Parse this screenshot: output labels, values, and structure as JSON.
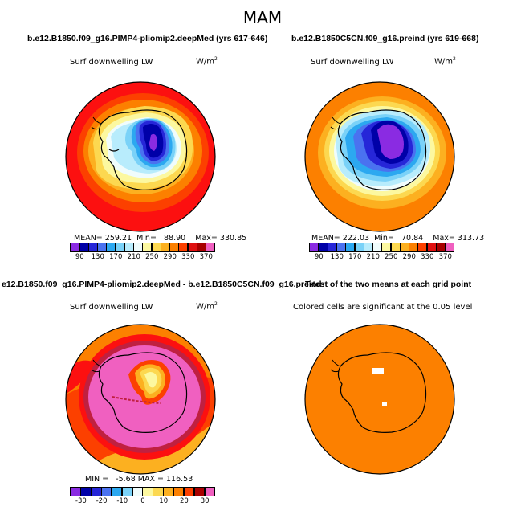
{
  "title": "MAM",
  "panels": [
    {
      "id": "p1",
      "title": "b.e12.B1850.f09_g16.PIMP4-pliomip2.deepMed (yrs 617-646)",
      "variable": "Surf downwelling LW",
      "units": "W/m",
      "units_exp": "2",
      "stats": {
        "mean_label": "MEAN=",
        "mean": "259.21",
        "min_label": "Min=",
        "min": "88.90",
        "max_label": "Max=",
        "max": "330.85"
      },
      "colorbar": {
        "ticks": [
          "90",
          "130",
          "170",
          "210",
          "250",
          "290",
          "330",
          "370"
        ],
        "colors": [
          "#8a2be2",
          "#0000a8",
          "#2626d8",
          "#4a72f0",
          "#2ca8f0",
          "#7ad2f8",
          "#b8ecfc",
          "#f0fcfc",
          "#fcf8a0",
          "#fcd850",
          "#fcb020",
          "#fc8000",
          "#fc4000",
          "#e01010",
          "#a80000",
          "#f060c0"
        ]
      }
    },
    {
      "id": "p2",
      "title": "b.e12.B1850C5CN.f09_g16.preind (yrs 619-668)",
      "variable": "Surf downwelling LW",
      "units": "W/m",
      "units_exp": "2",
      "stats": {
        "mean_label": "MEAN=",
        "mean": "222.03",
        "min_label": "Min=",
        "min": "70.84",
        "max_label": "Max=",
        "max": "313.73"
      },
      "colorbar": {
        "ticks": [
          "90",
          "130",
          "170",
          "210",
          "250",
          "290",
          "330",
          "370"
        ],
        "colors": [
          "#8a2be2",
          "#0000a8",
          "#2626d8",
          "#4a72f0",
          "#2ca8f0",
          "#7ad2f8",
          "#b8ecfc",
          "#f0fcfc",
          "#fcf8a0",
          "#fcd850",
          "#fcb020",
          "#fc8000",
          "#fc4000",
          "#e01010",
          "#a80000",
          "#f060c0"
        ]
      }
    },
    {
      "id": "p3",
      "title": "e12.B1850.f09_g16.PIMP4-pliomip2.deepMed - b.e12.B1850C5CN.f09_g16.preind",
      "variable": "Surf downwelling LW",
      "units": "W/m",
      "units_exp": "2",
      "stats": {
        "min_label": "MIN =",
        "min": "-5.68",
        "max_label": "MAX =",
        "max": "116.53"
      },
      "colorbar": {
        "ticks": [
          "-30",
          "-20",
          "-10",
          "0",
          "10",
          "20",
          "30"
        ],
        "colors": [
          "#8a2be2",
          "#0000a8",
          "#2626d8",
          "#4a72f0",
          "#2ca8f0",
          "#7ad2f8",
          "#f0fcfc",
          "#fcf8a0",
          "#fcd850",
          "#fcb020",
          "#fc8000",
          "#fc4000",
          "#a80000",
          "#f060c0"
        ]
      }
    },
    {
      "id": "p4",
      "title": "T-test of the two means at each grid point",
      "note": "Colored cells are significant at the 0.05 level"
    }
  ],
  "colors": {
    "ring_red": "#fc1010",
    "ring_orange": "#fc8000",
    "ring_yellow": "#fcd850",
    "pink": "#f060c0",
    "dark_red": "#c02040",
    "blue_deep": "#0000a8",
    "purple": "#8a2be2",
    "light_blue": "#b8ecfc"
  }
}
